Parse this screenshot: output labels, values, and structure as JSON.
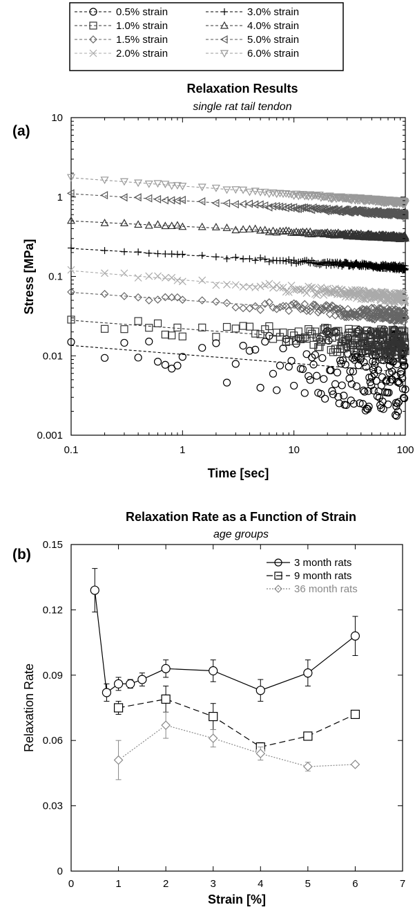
{
  "chart_data": [
    {
      "type": "scatter",
      "panel_label": "(a)",
      "title": "Relaxation Results",
      "subtitle": "single rat tail tendon",
      "xlabel": "Time [sec]",
      "ylabel": "Stress [MPa]",
      "xscale": "log",
      "yscale": "log",
      "xlim": [
        0.1,
        100
      ],
      "ylim": [
        0.001,
        10
      ],
      "x_ticks": [
        "0.1",
        "1",
        "10",
        "100"
      ],
      "y_ticks": [
        "0.001",
        "0.01",
        "0.1",
        "1",
        "10"
      ],
      "grid": false,
      "legend_position": "top (above plot)",
      "series": [
        {
          "name": "0.5% strain",
          "marker": "circle",
          "color": "#000000",
          "fit_start": 0.0135,
          "fit_end": 0.0062,
          "data_start": 0.013,
          "data_end": 0.006,
          "scatter_spread": 0.35
        },
        {
          "name": "1.0% strain",
          "marker": "square",
          "color": "#333333",
          "fit_start": 0.028,
          "fit_end": 0.0135,
          "data_start": 0.027,
          "data_end": 0.0135,
          "scatter_spread": 0.12
        },
        {
          "name": "1.5% strain",
          "marker": "diamond",
          "color": "#666666",
          "fit_start": 0.063,
          "fit_end": 0.032,
          "data_start": 0.062,
          "data_end": 0.032,
          "scatter_spread": 0.05
        },
        {
          "name": "2.0% strain",
          "marker": "x",
          "color": "#aaaaaa",
          "fit_start": 0.118,
          "fit_end": 0.053,
          "data_start": 0.118,
          "data_end": 0.053,
          "scatter_spread": 0.04
        },
        {
          "name": "3.0% strain",
          "marker": "plus",
          "color": "#000000",
          "fit_start": 0.225,
          "fit_end": 0.128,
          "data_start": 0.225,
          "data_end": 0.128,
          "scatter_spread": 0.02
        },
        {
          "name": "4.0% strain",
          "marker": "triangle-up",
          "color": "#333333",
          "fit_start": 0.5,
          "fit_end": 0.31,
          "data_start": 0.5,
          "data_end": 0.31,
          "scatter_spread": 0.015
        },
        {
          "name": "5.0% strain",
          "marker": "triangle-left",
          "color": "#555555",
          "fit_start": 1.1,
          "fit_end": 0.6,
          "data_start": 1.1,
          "data_end": 0.6,
          "scatter_spread": 0.015
        },
        {
          "name": "6.0% strain",
          "marker": "triangle-down",
          "color": "#999999",
          "fit_start": 1.75,
          "fit_end": 0.85,
          "data_start": 1.75,
          "data_end": 0.85,
          "scatter_spread": 0.015
        }
      ]
    },
    {
      "type": "line",
      "panel_label": "(b)",
      "title": "Relaxation Rate as a Function of Strain",
      "subtitle": "age groups",
      "xlabel": "Strain [%]",
      "ylabel": "Relaxation Rate",
      "xlim": [
        0,
        7
      ],
      "ylim": [
        0,
        0.15
      ],
      "x_ticks": [
        "0",
        "1",
        "2",
        "3",
        "4",
        "5",
        "6",
        "7"
      ],
      "y_ticks": [
        "0",
        "0.03",
        "0.06",
        "0.09",
        "0.12",
        "0.15"
      ],
      "grid": false,
      "legend_position": "top-right",
      "series": [
        {
          "name": "3 month rats",
          "marker": "circle",
          "line": "solid",
          "color": "#000000",
          "x": [
            0.5,
            0.75,
            1.0,
            1.25,
            1.5,
            2.0,
            3.0,
            4.0,
            5.0,
            6.0
          ],
          "y": [
            0.129,
            0.082,
            0.086,
            0.086,
            0.088,
            0.093,
            0.092,
            0.083,
            0.091,
            0.108
          ],
          "err": [
            0.01,
            0.004,
            0.003,
            0.002,
            0.003,
            0.004,
            0.005,
            0.005,
            0.006,
            0.009
          ]
        },
        {
          "name": "9 month rats",
          "marker": "square",
          "line": "dashed",
          "color": "#000000",
          "x": [
            1.0,
            2.0,
            3.0,
            4.0,
            5.0,
            6.0
          ],
          "y": [
            0.075,
            0.079,
            0.071,
            0.057,
            0.062,
            0.072
          ],
          "err": [
            0.003,
            0.006,
            0.006,
            0.002,
            0.001,
            0.001
          ]
        },
        {
          "name": "36 month rats",
          "marker": "diamond",
          "line": "dotted",
          "color": "#888888",
          "x": [
            1.0,
            2.0,
            3.0,
            4.0,
            5.0,
            6.0
          ],
          "y": [
            0.051,
            0.067,
            0.061,
            0.054,
            0.048,
            0.049
          ],
          "err": [
            0.009,
            0.006,
            0.004,
            0.003,
            0.002,
            0.001
          ]
        }
      ]
    }
  ]
}
